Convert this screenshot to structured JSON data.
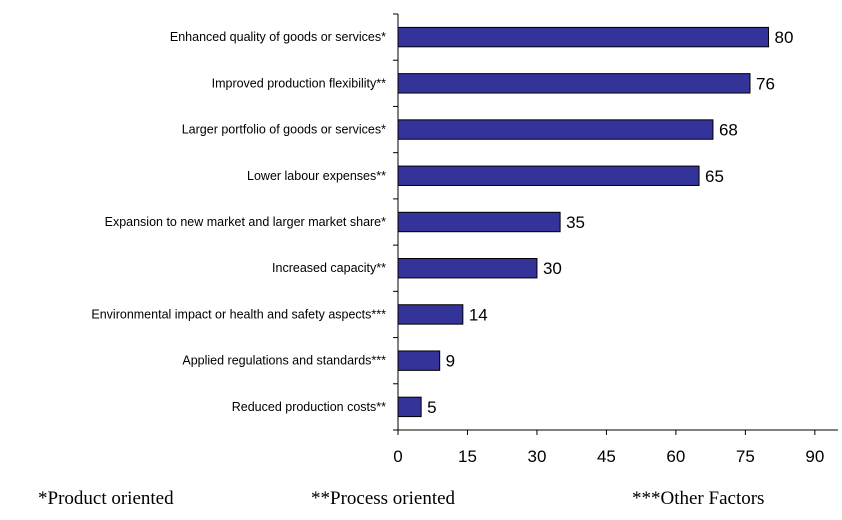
{
  "chart_data": {
    "type": "bar",
    "orientation": "horizontal",
    "categories": [
      "Enhanced quality of goods or services*",
      "Improved production flexibility**",
      "Larger portfolio of goods or services*",
      "Lower labour expenses**",
      "Expansion to new market and larger market share*",
      "Increased capacity**",
      "Environmental impact or health and safety aspects***",
      "Applied regulations and standards***",
      "Reduced production costs**"
    ],
    "values": [
      80,
      76,
      68,
      65,
      35,
      30,
      14,
      9,
      5
    ],
    "xlim": [
      0,
      95
    ],
    "xticks": [
      "0",
      "15",
      "30",
      "45",
      "60",
      "75",
      "90"
    ],
    "bar_color": "#333399",
    "grid": false
  },
  "footnotes": {
    "product": "*Product oriented",
    "process": "**Process oriented",
    "other": "***Other Factors"
  }
}
